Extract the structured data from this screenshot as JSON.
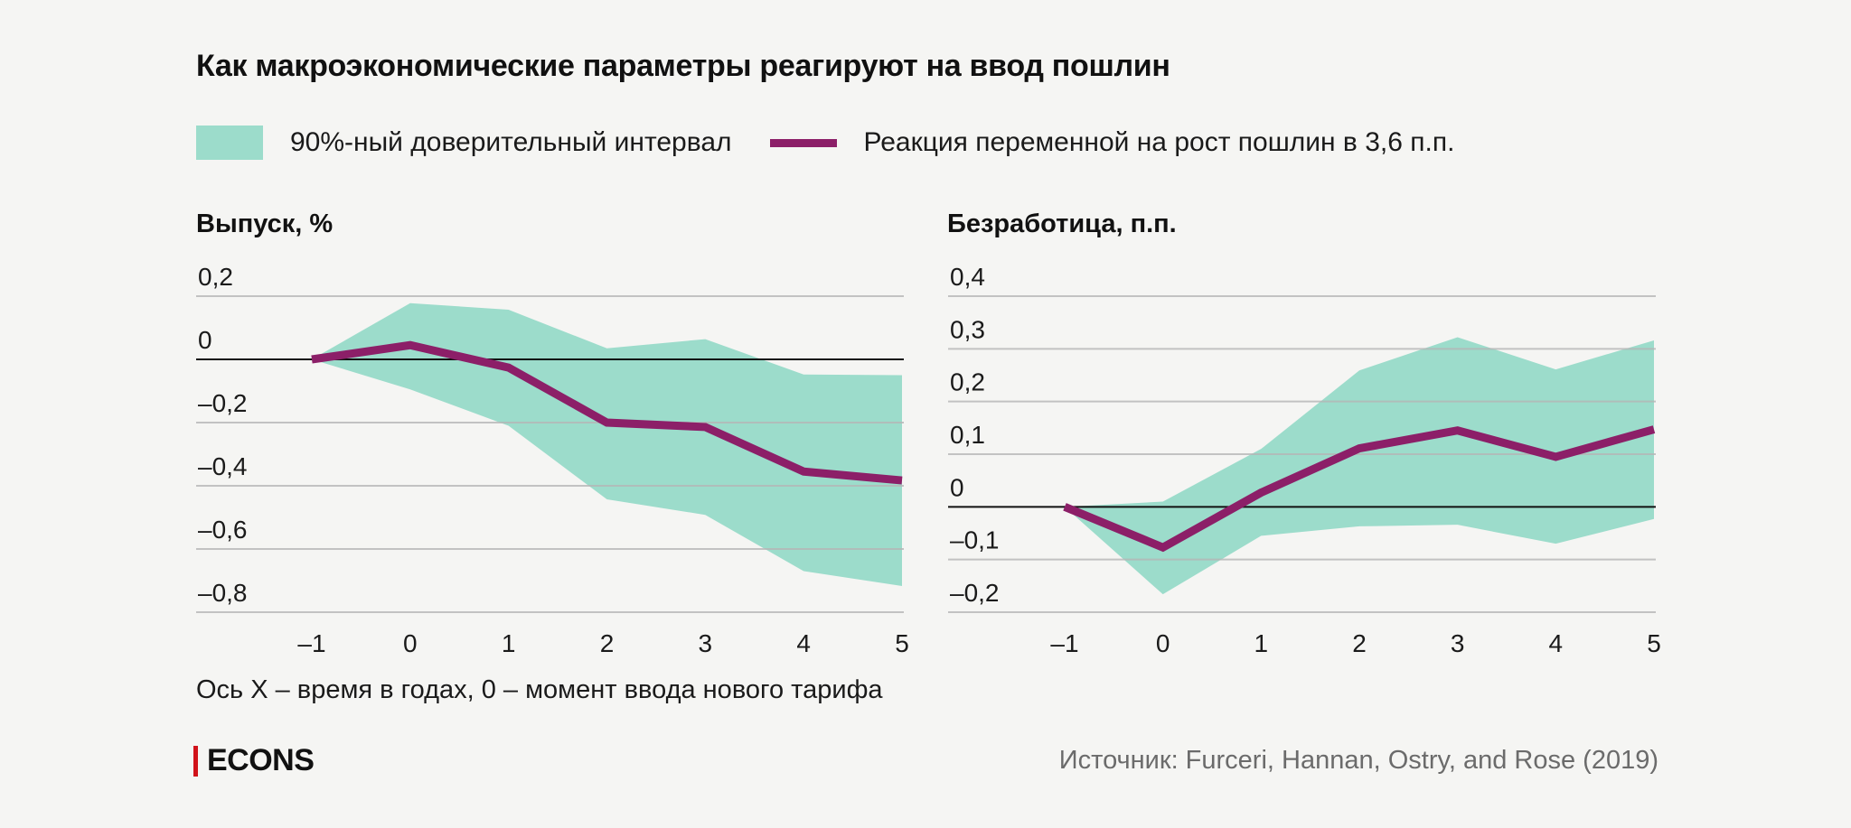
{
  "title": "Как макроэкономические параметры реагируют на ввод пошлин",
  "legend": {
    "band_label": "90%-ный доверительный интервал",
    "line_label": "Реакция переменной на рост пошлин в 3,6 п.п."
  },
  "colors": {
    "band": "#9cdccb",
    "line": "#8c1f68",
    "gridline": "#b5b5b5",
    "zero_line": "#111111",
    "background": "#f5f5f3",
    "brand_bar": "#d1121a"
  },
  "axis_note": "Ось X – время в годах, 0 – момент ввода нового тарифа",
  "brand": "ECONS",
  "source": "Источник: Furceri, Hannan, Ostry, and Rose (2019)",
  "chart_data": [
    {
      "type": "area",
      "title": "Выпуск, %",
      "xlabel": "Ось X – время в годах, 0 – момент ввода нового тарифа",
      "ylabel": "Выпуск, %",
      "x": [
        -1,
        0,
        1,
        2,
        3,
        4,
        5
      ],
      "x_tick_labels": [
        "–1",
        "0",
        "1",
        "2",
        "3",
        "4",
        "5"
      ],
      "y_ticks": [
        0.2,
        0,
        -0.2,
        -0.4,
        -0.6,
        -0.8
      ],
      "y_tick_labels": [
        "0,2",
        "0",
        "–0,2",
        "–0,4",
        "–0,6",
        "–0,8"
      ],
      "ylim": [
        -0.8,
        0.2
      ],
      "grid": true,
      "series": [
        {
          "name": "Реакция переменной на рост пошлин в 3,6 п.п.",
          "type": "line",
          "values": [
            0,
            0.045,
            -0.026,
            -0.2,
            -0.214,
            -0.355,
            -0.383
          ]
        },
        {
          "name": "90%-ный доверительный интервал (верхняя граница)",
          "type": "band_upper",
          "values": [
            0,
            0.178,
            0.157,
            0.035,
            0.064,
            -0.048,
            -0.05
          ]
        },
        {
          "name": "90%-ный доверительный интервал (нижняя граница)",
          "type": "band_lower",
          "values": [
            0,
            -0.095,
            -0.21,
            -0.443,
            -0.492,
            -0.67,
            -0.717
          ]
        }
      ]
    },
    {
      "type": "area",
      "title": "Безработица, п.п.",
      "xlabel": "Ось X – время в годах, 0 – момент ввода нового тарифа",
      "ylabel": "Безработица, п.п.",
      "x": [
        -1,
        0,
        1,
        2,
        3,
        4,
        5
      ],
      "x_tick_labels": [
        "–1",
        "0",
        "1",
        "2",
        "3",
        "4",
        "5"
      ],
      "y_ticks": [
        0.4,
        0.3,
        0.2,
        0.1,
        0,
        -0.1,
        -0.2
      ],
      "y_tick_labels": [
        "0,4",
        "0,3",
        "0,2",
        "0,1",
        "0",
        "–0,1",
        "–0,2"
      ],
      "ylim": [
        -0.2,
        0.4
      ],
      "grid": true,
      "series": [
        {
          "name": "Реакция переменной на рост пошлин в 3,6 п.п.",
          "type": "line",
          "values": [
            0,
            -0.077,
            0.027,
            0.111,
            0.145,
            0.095,
            0.147
          ]
        },
        {
          "name": "90%-ный доверительный интервал (верхняя граница)",
          "type": "band_upper",
          "values": [
            0,
            0.01,
            0.11,
            0.259,
            0.322,
            0.261,
            0.316
          ]
        },
        {
          "name": "90%-ный доверительный интервал (нижняя граница)",
          "type": "band_lower",
          "values": [
            0,
            -0.166,
            -0.055,
            -0.037,
            -0.034,
            -0.07,
            -0.023
          ]
        }
      ]
    }
  ]
}
